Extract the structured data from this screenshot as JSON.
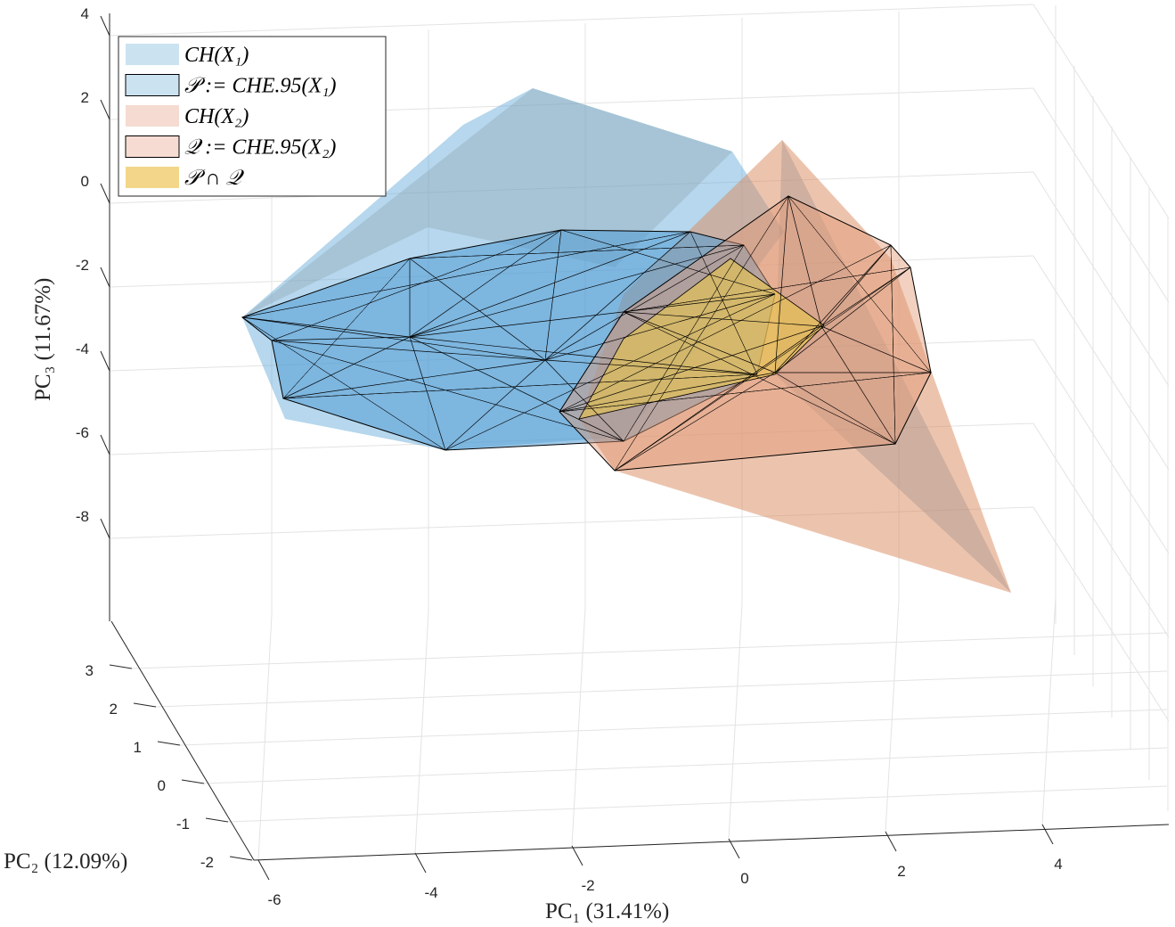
{
  "chart_data": {
    "type": "3d-polyhedra",
    "xlabel": "PC₁ (31.41%)",
    "ylabel": "PC₂ (12.09%)",
    "zlabel": "PC₃ (11.67%)",
    "x_ticks": [
      "-6",
      "-4",
      "-2",
      "0",
      "2",
      "4"
    ],
    "y_ticks": [
      "-2",
      "-1",
      "0",
      "1",
      "2",
      "3"
    ],
    "z_ticks": [
      "4",
      "2",
      "0",
      "-2",
      "-4",
      "-6",
      "-8"
    ],
    "xlim": [
      -6,
      5.5
    ],
    "ylim": [
      -2,
      3.5
    ],
    "zlim": [
      -10,
      4
    ],
    "grid": true,
    "legend_position": "top-left",
    "legend": [
      {
        "label": "CH(X₁)",
        "color": "#cbe2f1",
        "edge": false
      },
      {
        "label": "𝒫 := CHE.95(X₁)",
        "color": "#cbe2f1",
        "edge": true
      },
      {
        "label": "CH(X₂)",
        "color": "#f5dbd1",
        "edge": false
      },
      {
        "label": "𝒬 := CHE.95(X₂)",
        "color": "#f5dbd1",
        "edge": true
      },
      {
        "label": "𝒫 ∩ 𝒬",
        "color": "#f3d68a",
        "edge": false
      }
    ],
    "colors": {
      "blue": "#5ea7d8",
      "orange": "#dc8a5e",
      "yellow": "#eecb44"
    }
  }
}
